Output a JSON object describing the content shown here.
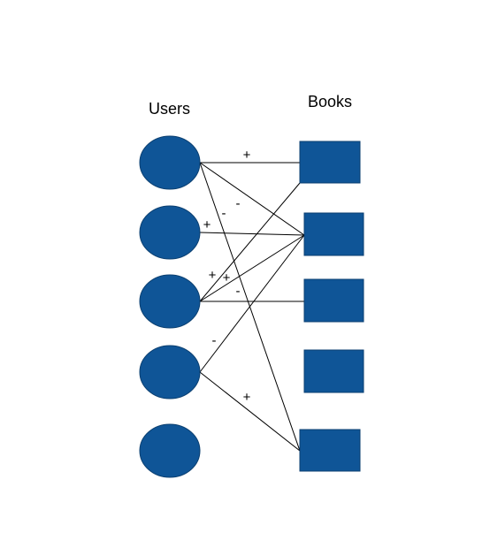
{
  "diagram": {
    "type": "bipartite-graph",
    "node_color": "#0f5597",
    "left_group": {
      "title": "Users",
      "node_shape": "ellipse",
      "nodes": [
        "user-1",
        "user-2",
        "user-3",
        "user-4",
        "user-5"
      ]
    },
    "right_group": {
      "title": "Books",
      "node_shape": "rectangle",
      "nodes": [
        "book-1",
        "book-2",
        "book-3",
        "book-4",
        "book-5"
      ]
    },
    "edges": [
      {
        "from": "user-1",
        "to": "book-1",
        "sign": "+"
      },
      {
        "from": "user-1",
        "to": "book-2",
        "sign": "-"
      },
      {
        "from": "user-1",
        "to": "book-5",
        "sign": "-"
      },
      {
        "from": "user-2",
        "to": "book-2",
        "sign": "+"
      },
      {
        "from": "user-3",
        "to": "book-1",
        "sign": "+"
      },
      {
        "from": "user-3",
        "to": "book-2",
        "sign": "+"
      },
      {
        "from": "user-3",
        "to": "book-3",
        "sign": "-"
      },
      {
        "from": "user-4",
        "to": "book-2",
        "sign": "-"
      },
      {
        "from": "user-4",
        "to": "book-5",
        "sign": "+"
      }
    ]
  }
}
